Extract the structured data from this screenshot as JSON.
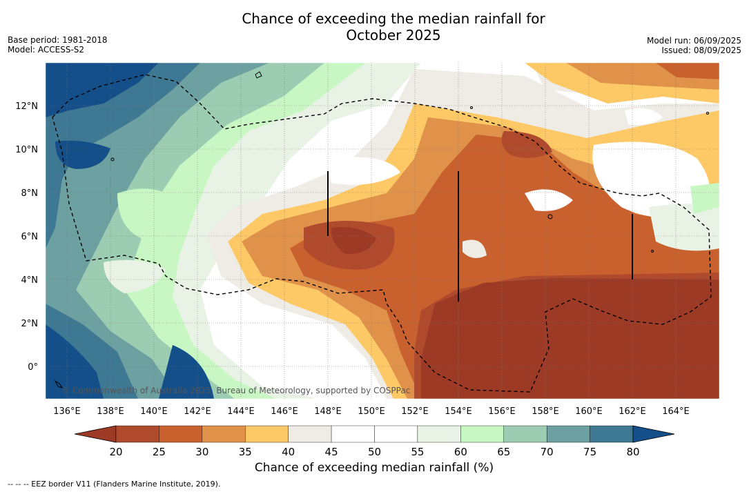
{
  "title_line1": "Chance of exceeding the median rainfall for",
  "title_line2": "October 2025",
  "base_period": "Base period: 1981-2018",
  "model": "Model: ACCESS-S2",
  "model_run": "Model run: 06/09/2025",
  "issued": "Issued: 08/09/2025",
  "copyright": "© Commonwealth of Australia 2025, Bureau of Meteorology, supported by COSPPac",
  "lon_labels": [
    "136°E",
    "138°E",
    "140°E",
    "142°E",
    "144°E",
    "146°E",
    "148°E",
    "150°E",
    "152°E",
    "154°E",
    "156°E",
    "158°E",
    "160°E",
    "162°E",
    "164°E"
  ],
  "lat_labels": [
    "12°N",
    "10°N",
    "8°N",
    "6°N",
    "4°N",
    "2°N",
    "0°"
  ],
  "colorbar": {
    "ticks": [
      "20",
      "25",
      "30",
      "35",
      "40",
      "45",
      "50",
      "55",
      "60",
      "65",
      "70",
      "75",
      "80"
    ],
    "colors": [
      "#9c3a25",
      "#b04a2d",
      "#c9612f",
      "#e0914a",
      "#fdc967",
      "#efebe5",
      "#ffffff",
      "#ffffff",
      "#e8f3e6",
      "#c8f7c4",
      "#9ccdb2",
      "#6da0a1",
      "#3f7893",
      "#154f8a"
    ],
    "title": "Chance of exceeding median rainfall (%)",
    "low_color": "#9c3a25",
    "high_color": "#154f8a"
  },
  "footnote": "--  --  -- EEZ border V11 (Flanders Marine Institute, 2019)."
}
